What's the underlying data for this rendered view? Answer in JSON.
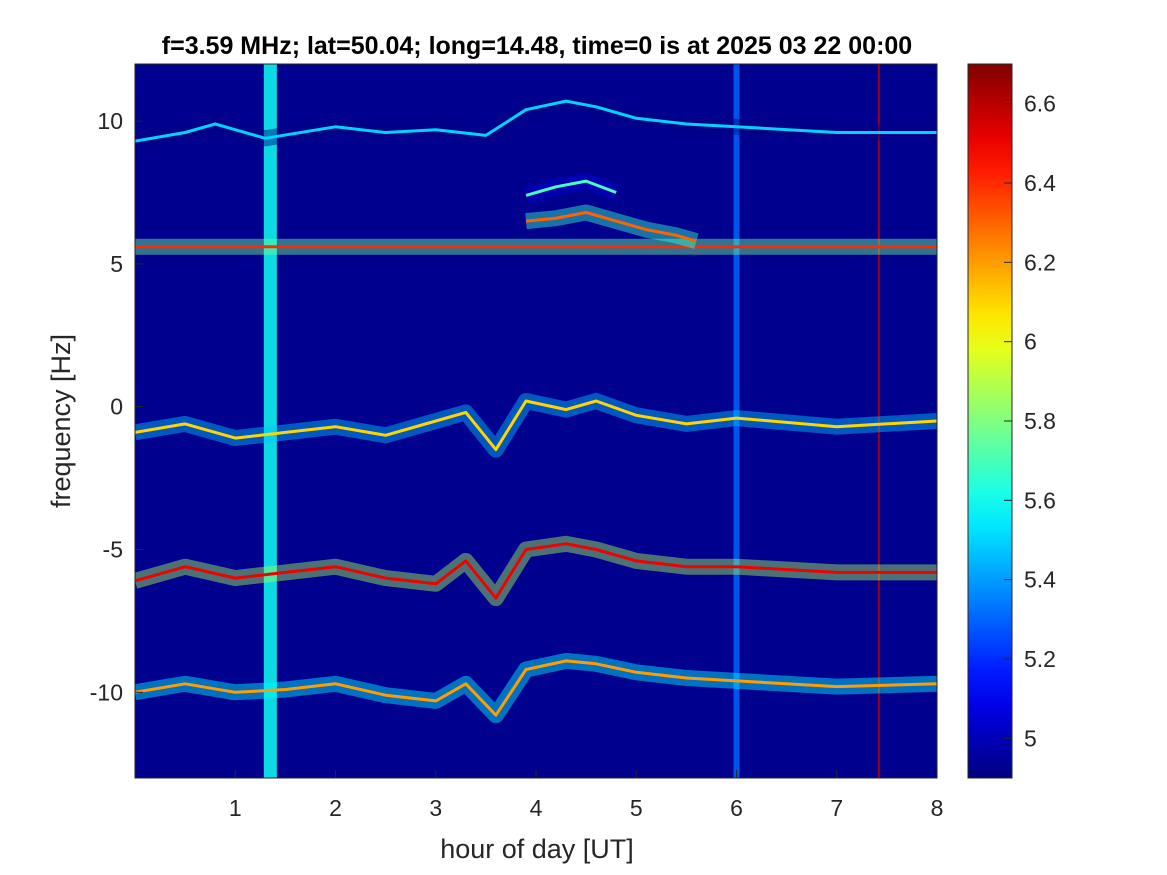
{
  "chart_data": {
    "type": "heatmap",
    "title": "f=3.59 MHz;  lat=50.04; long=14.48, time=0 is at 2025 03 22 00:00",
    "xlabel": "hour of day [UT]",
    "ylabel": "frequency [Hz]",
    "xlim": [
      0,
      8
    ],
    "ylim": [
      -13,
      12
    ],
    "xticks": [
      1,
      2,
      3,
      4,
      5,
      6,
      7,
      8
    ],
    "xtick_labels": [
      "1",
      "2",
      "3",
      "4",
      "5",
      "6",
      "7",
      "8"
    ],
    "yticks": [
      10,
      5,
      0,
      -5,
      -10
    ],
    "ytick_labels": [
      "10",
      "5",
      "0",
      "-5",
      "-10"
    ],
    "colorbar": {
      "colormap": "jet",
      "range": [
        4.9,
        6.7
      ],
      "ticks": [
        6.6,
        6.4,
        6.2,
        6,
        5.8,
        5.6,
        5.4,
        5.2,
        5
      ],
      "tick_labels": [
        "6.6",
        "6.4",
        "6.2",
        "6",
        "5.8",
        "5.6",
        "5.4",
        "5.2",
        "5"
      ]
    },
    "background_color": "#00008f",
    "traces": [
      {
        "x": [
          0,
          0.5,
          0.8,
          1.3,
          2,
          2.5,
          3,
          3.5,
          3.9,
          4.3,
          4.6,
          5,
          5.5,
          6,
          7,
          8
        ],
        "y": [
          9.3,
          9.6,
          9.9,
          9.4,
          9.8,
          9.6,
          9.7,
          9.5,
          10.4,
          10.7,
          10.5,
          10.1,
          9.9,
          9.8,
          9.6,
          9.6
        ],
        "level": 5.5
      },
      {
        "x": [
          0,
          0.5,
          1,
          1.5,
          2,
          2.5,
          3,
          3.5,
          3.9,
          4.3,
          4.6,
          5,
          5.5,
          6,
          7,
          8
        ],
        "y": [
          5.6,
          5.6,
          5.6,
          5.6,
          5.6,
          5.6,
          5.6,
          5.6,
          5.6,
          5.6,
          5.6,
          5.6,
          5.6,
          5.6,
          5.6,
          5.6
        ],
        "level": 6.4
      },
      {
        "x": [
          3.9,
          4.2,
          4.5,
          4.8,
          5.1,
          5.4,
          5.6
        ],
        "y": [
          6.5,
          6.6,
          6.8,
          6.5,
          6.2,
          6.0,
          5.8
        ],
        "level": 6.3
      },
      {
        "x": [
          3.9,
          4.2,
          4.5,
          4.8
        ],
        "y": [
          7.4,
          7.7,
          7.9,
          7.5
        ],
        "level": 5.7
      },
      {
        "x": [
          0,
          0.5,
          1,
          1.5,
          2,
          2.5,
          3,
          3.3,
          3.6,
          3.9,
          4.3,
          4.6,
          5,
          5.5,
          6,
          7,
          8
        ],
        "y": [
          -0.9,
          -0.6,
          -1.1,
          -0.9,
          -0.7,
          -1.0,
          -0.5,
          -0.2,
          -1.5,
          0.2,
          -0.1,
          0.2,
          -0.3,
          -0.6,
          -0.4,
          -0.7,
          -0.5
        ],
        "level": 6.1
      },
      {
        "x": [
          0,
          0.5,
          1,
          1.5,
          2,
          2.5,
          3,
          3.3,
          3.6,
          3.9,
          4.3,
          4.6,
          5,
          5.5,
          6,
          7,
          8
        ],
        "y": [
          -6.1,
          -5.6,
          -6.0,
          -5.8,
          -5.6,
          -6.0,
          -6.2,
          -5.4,
          -6.7,
          -5.0,
          -4.8,
          -5.0,
          -5.4,
          -5.6,
          -5.6,
          -5.8,
          -5.8
        ],
        "level": 6.5
      },
      {
        "x": [
          0,
          0.5,
          1,
          1.5,
          2,
          2.5,
          3,
          3.3,
          3.6,
          3.9,
          4.3,
          4.6,
          5,
          5.5,
          6,
          7,
          8
        ],
        "y": [
          -10.0,
          -9.7,
          -10.0,
          -9.9,
          -9.7,
          -10.1,
          -10.3,
          -9.7,
          -10.8,
          -9.2,
          -8.9,
          -9.0,
          -9.3,
          -9.5,
          -9.6,
          -9.8,
          -9.7
        ],
        "level": 6.2
      }
    ],
    "vertical_bands": [
      {
        "x": 1.35,
        "width_hours": 0.13,
        "level": 5.6
      },
      {
        "x": 6.0,
        "width_hours": 0.06,
        "level": 5.3
      },
      {
        "x": 7.42,
        "width_hours": 0.02,
        "level": 6.6
      }
    ]
  }
}
